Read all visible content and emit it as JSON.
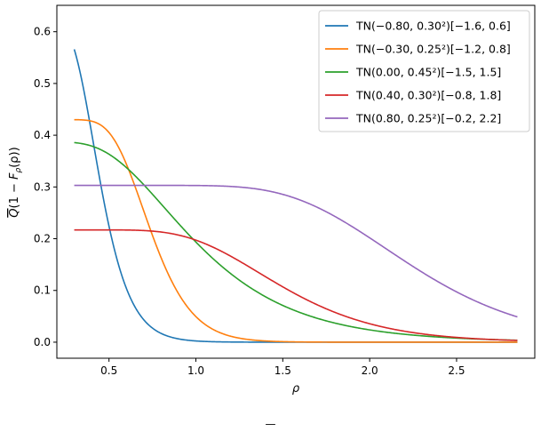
{
  "chart_data": {
    "type": "line",
    "title": "",
    "xlabel": "ρ",
    "ylabel": "Q̄(1 − F_ρ(ρ))",
    "ylabel_parts": {
      "q": "Q",
      "open": "(1 − ",
      "f": "F",
      "sub": "ρ",
      "arg": "(ρ))"
    },
    "xlim": [
      0.2,
      2.95
    ],
    "ylim": [
      -0.031,
      0.651
    ],
    "xticks": [
      0.5,
      1.0,
      1.5,
      2.0,
      2.5
    ],
    "xtick_labels": [
      "0.5",
      "1.0",
      "1.5",
      "2.0",
      "2.5"
    ],
    "yticks": [
      0.0,
      0.1,
      0.2,
      0.3,
      0.4,
      0.5,
      0.6
    ],
    "ytick_labels": [
      "0.0",
      "0.1",
      "0.2",
      "0.3",
      "0.4",
      "0.5",
      "0.6"
    ],
    "grid": false,
    "legend_position": "upper right",
    "x_range": [
      0.3,
      2.85
    ],
    "series": [
      {
        "name": "TN(−0.80, 0.30²)[−1.6, 0.6]",
        "mu": -0.8,
        "sigma": 0.3,
        "a": -1.6,
        "b": 0.6,
        "scale": 0.619,
        "color": "#1f77b4"
      },
      {
        "name": "TN(−0.30, 0.25²)[−1.2, 0.8]",
        "mu": -0.3,
        "sigma": 0.25,
        "a": -1.2,
        "b": 0.8,
        "scale": 0.43,
        "color": "#ff7f0e"
      },
      {
        "name": "TN(0.00, 0.45²)[−1.5, 1.5]",
        "mu": 0.0,
        "sigma": 0.45,
        "a": -1.5,
        "b": 1.5,
        "scale": 0.387,
        "color": "#2ca02c"
      },
      {
        "name": "TN(0.40, 0.30²)[−0.8, 1.8]",
        "mu": 0.4,
        "sigma": 0.3,
        "a": -0.8,
        "b": 1.8,
        "scale": 0.217,
        "color": "#d62728"
      },
      {
        "name": "TN(0.80, 0.25²)[−0.2, 2.2]",
        "mu": 0.8,
        "sigma": 0.25,
        "a": -0.2,
        "b": 2.2,
        "scale": 0.303,
        "color": "#9467bd"
      }
    ]
  },
  "caption": "—"
}
